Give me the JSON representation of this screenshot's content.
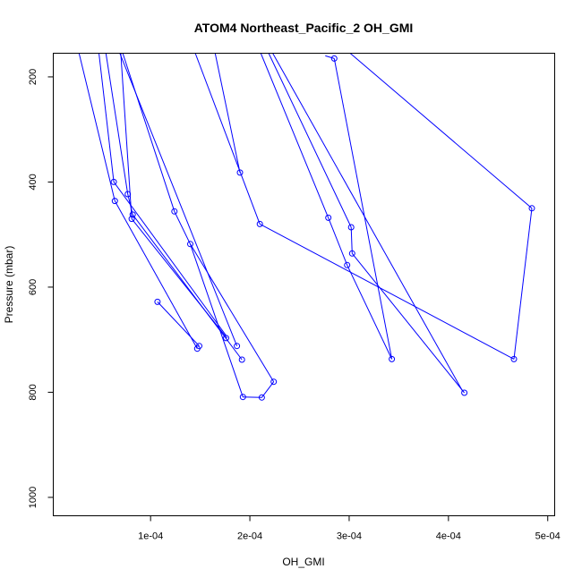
{
  "chart_data": {
    "type": "line",
    "title": "ATOM4 Northeast_Pacific_2 OH_GMI",
    "xlabel": "OH_GMI",
    "ylabel": "Pressure (mbar)",
    "xlim": [
      2e-06,
      0.000507
    ],
    "ylim": [
      1035,
      155
    ],
    "y_reversed": true,
    "x_ticks": [
      0.0001,
      0.0002,
      0.0003,
      0.0004,
      0.0005
    ],
    "x_tick_labels": [
      "1e-04",
      "2e-04",
      "3e-04",
      "4e-04",
      "5e-04"
    ],
    "y_ticks": [
      200,
      400,
      600,
      800,
      1000
    ],
    "y_tick_labels": [
      "200",
      "400",
      "600",
      "800",
      "1000"
    ],
    "grid": false,
    "line_color": "#0000ff",
    "series": [
      {
        "points": [
          [
            2.8e-05,
            155
          ],
          [
            6.4e-05,
            436
          ]
        ]
      },
      {
        "points": [
          [
            6.4e-05,
            436
          ],
          [
            0.000147,
            717
          ]
        ]
      },
      {
        "points": [
          [
            4.8e-05,
            155
          ],
          [
            6.3e-05,
            400
          ]
        ]
      },
      {
        "points": [
          [
            6.3e-05,
            400
          ],
          [
            0.000176,
            692
          ]
        ]
      },
      {
        "points": [
          [
            5.5e-05,
            155
          ],
          [
            7.7e-05,
            423
          ]
        ]
      },
      {
        "points": [
          [
            7.7e-05,
            423
          ],
          [
            8.2e-05,
            462
          ]
        ]
      },
      {
        "points": [
          [
            8.2e-05,
            462
          ],
          [
            0.000192,
            738
          ]
        ]
      },
      {
        "points": [
          [
            7e-05,
            155
          ],
          [
            8.1e-05,
            470
          ]
        ]
      },
      {
        "points": [
          [
            8.1e-05,
            470
          ],
          [
            0.000177,
            697
          ]
        ]
      },
      {
        "points": [
          [
            6.9e-05,
            155
          ],
          [
            0.000187,
            712
          ]
        ]
      },
      {
        "points": [
          [
            0.000107,
            628
          ],
          [
            0.000149,
            712
          ]
        ]
      },
      {
        "points": [
          [
            7.2e-05,
            155
          ],
          [
            0.000124,
            456
          ]
        ]
      },
      {
        "points": [
          [
            0.000124,
            456
          ],
          [
            0.00014,
            518
          ]
        ]
      },
      {
        "points": [
          [
            0.00014,
            518
          ],
          [
            0.000193,
            809
          ]
        ]
      },
      {
        "points": [
          [
            0.000193,
            809
          ],
          [
            0.000212,
            810
          ]
        ]
      },
      {
        "points": [
          [
            0.000212,
            810
          ],
          [
            0.000224,
            780
          ]
        ]
      },
      {
        "points": [
          [
            0.000224,
            780
          ],
          [
            0.00014,
            518
          ]
        ]
      },
      {
        "points": [
          [
            0.000165,
            155
          ],
          [
            0.00019,
            382
          ]
        ]
      },
      {
        "points": [
          [
            0.000145,
            155
          ],
          [
            0.00021,
            480
          ]
        ]
      },
      {
        "points": [
          [
            0.00021,
            480
          ],
          [
            0.000466,
            737
          ]
        ]
      },
      {
        "points": [
          [
            0.000466,
            737
          ],
          [
            0.000484,
            450
          ]
        ]
      },
      {
        "points": [
          [
            0.000484,
            450
          ],
          [
            0.000301,
            155
          ]
        ]
      },
      {
        "points": [
          [
            0.000211,
            155
          ],
          [
            0.000279,
            468
          ]
        ]
      },
      {
        "points": [
          [
            0.000279,
            468
          ],
          [
            0.000298,
            558
          ]
        ]
      },
      {
        "points": [
          [
            0.000298,
            558
          ],
          [
            0.000343,
            737
          ]
        ]
      },
      {
        "points": [
          [
            0.000219,
            155
          ],
          [
            0.000302,
            486
          ]
        ]
      },
      {
        "points": [
          [
            0.000302,
            486
          ],
          [
            0.000303,
            536
          ]
        ]
      },
      {
        "points": [
          [
            0.000303,
            536
          ],
          [
            0.000416,
            801
          ]
        ]
      },
      {
        "points": [
          [
            0.000223,
            155
          ],
          [
            0.000414,
            797
          ]
        ]
      },
      {
        "points": [
          [
            0.000276,
            160
          ],
          [
            0.000285,
            165
          ]
        ]
      },
      {
        "points": [
          [
            0.000285,
            165
          ],
          [
            0.000343,
            737
          ]
        ]
      }
    ],
    "markers": [
      [
        6.4e-05,
        436
      ],
      [
        6.3e-05,
        400
      ],
      [
        7.7e-05,
        423
      ],
      [
        8.2e-05,
        462
      ],
      [
        8.1e-05,
        470
      ],
      [
        0.000107,
        628
      ],
      [
        0.000124,
        456
      ],
      [
        0.00014,
        518
      ],
      [
        0.000147,
        717
      ],
      [
        0.000149,
        712
      ],
      [
        0.000176,
        697
      ],
      [
        0.000187,
        712
      ],
      [
        0.000192,
        738
      ],
      [
        0.000193,
        809
      ],
      [
        0.000212,
        810
      ],
      [
        0.000224,
        780
      ],
      [
        0.00019,
        382
      ],
      [
        0.00021,
        480
      ],
      [
        0.000279,
        468
      ],
      [
        0.000298,
        558
      ],
      [
        0.000302,
        486
      ],
      [
        0.000303,
        536
      ],
      [
        0.000343,
        737
      ],
      [
        0.000416,
        801
      ],
      [
        0.000466,
        737
      ],
      [
        0.000484,
        450
      ],
      [
        0.000285,
        165
      ]
    ]
  }
}
